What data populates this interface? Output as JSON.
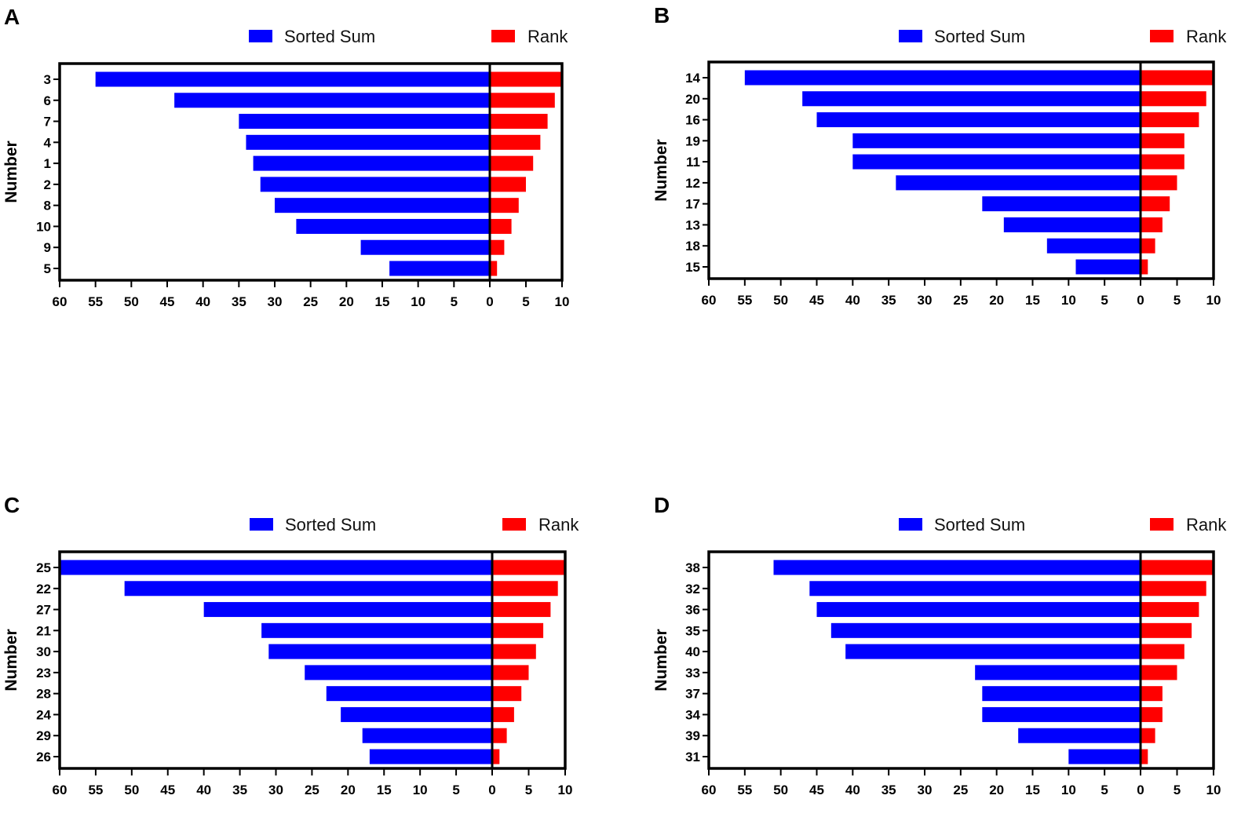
{
  "legend": {
    "sorted_sum": "Sorted Sum",
    "rank": "Rank"
  },
  "colors": {
    "sorted_sum": "#0000FF",
    "rank": "#FF0000",
    "axis": "#000000"
  },
  "chart_data": [
    {
      "panel": "A",
      "type": "bar",
      "orientation": "horizontal-diverging",
      "ylabel": "Number",
      "categories": [
        "3",
        "6",
        "7",
        "4",
        "1",
        "2",
        "8",
        "10",
        "9",
        "5"
      ],
      "series": [
        {
          "name": "Sorted Sum",
          "values": [
            55,
            44,
            35,
            34,
            33,
            32,
            30,
            27,
            18,
            14
          ]
        },
        {
          "name": "Rank",
          "values": [
            10,
            9,
            8,
            7,
            6,
            5,
            4,
            3,
            2,
            1
          ]
        }
      ],
      "left_axis": {
        "range": [
          60,
          0
        ],
        "ticks": [
          "60",
          "55",
          "50",
          "45",
          "40",
          "35",
          "30",
          "25",
          "20",
          "15",
          "10",
          "5",
          "0"
        ]
      },
      "right_axis": {
        "range": [
          0,
          10
        ],
        "ticks": [
          "5",
          "10"
        ]
      }
    },
    {
      "panel": "B",
      "type": "bar",
      "orientation": "horizontal-diverging",
      "ylabel": "Number",
      "categories": [
        "14",
        "20",
        "16",
        "19",
        "11",
        "12",
        "17",
        "13",
        "18",
        "15"
      ],
      "series": [
        {
          "name": "Sorted Sum",
          "values": [
            55,
            47,
            45,
            40,
            40,
            34,
            22,
            19,
            13,
            9
          ]
        },
        {
          "name": "Rank",
          "values": [
            10,
            9,
            8,
            6,
            6,
            5,
            4,
            3,
            2,
            1
          ]
        }
      ],
      "left_axis": {
        "range": [
          60,
          0
        ],
        "ticks": [
          "60",
          "55",
          "50",
          "45",
          "40",
          "35",
          "30",
          "25",
          "20",
          "15",
          "10",
          "5",
          "0"
        ]
      },
      "right_axis": {
        "range": [
          0,
          10
        ],
        "ticks": [
          "5",
          "10"
        ]
      }
    },
    {
      "panel": "C",
      "type": "bar",
      "orientation": "horizontal-diverging",
      "ylabel": "Number",
      "categories": [
        "25",
        "22",
        "27",
        "21",
        "30",
        "23",
        "28",
        "24",
        "29",
        "26"
      ],
      "series": [
        {
          "name": "Sorted Sum",
          "values": [
            60,
            51,
            40,
            32,
            31,
            26,
            23,
            21,
            18,
            17
          ]
        },
        {
          "name": "Rank",
          "values": [
            10,
            9,
            8,
            7,
            6,
            5,
            4,
            3,
            2,
            1
          ]
        }
      ],
      "left_axis": {
        "range": [
          60,
          0
        ],
        "ticks": [
          "60",
          "55",
          "50",
          "45",
          "40",
          "35",
          "30",
          "25",
          "20",
          "15",
          "10",
          "5",
          "0"
        ]
      },
      "right_axis": {
        "range": [
          0,
          10
        ],
        "ticks": [
          "5",
          "10"
        ]
      }
    },
    {
      "panel": "D",
      "type": "bar",
      "orientation": "horizontal-diverging",
      "ylabel": "Number",
      "categories": [
        "38",
        "32",
        "36",
        "35",
        "40",
        "33",
        "37",
        "34",
        "39",
        "31"
      ],
      "series": [
        {
          "name": "Sorted Sum",
          "values": [
            51,
            46,
            45,
            43,
            41,
            23,
            22,
            22,
            17,
            10
          ]
        },
        {
          "name": "Rank",
          "values": [
            10,
            9,
            8,
            7,
            6,
            5,
            3,
            3,
            2,
            1
          ]
        }
      ],
      "left_axis": {
        "range": [
          60,
          0
        ],
        "ticks": [
          "60",
          "55",
          "50",
          "45",
          "40",
          "35",
          "30",
          "25",
          "20",
          "15",
          "10",
          "5",
          "0"
        ]
      },
      "right_axis": {
        "range": [
          0,
          10
        ],
        "ticks": [
          "5",
          "10"
        ]
      }
    }
  ]
}
